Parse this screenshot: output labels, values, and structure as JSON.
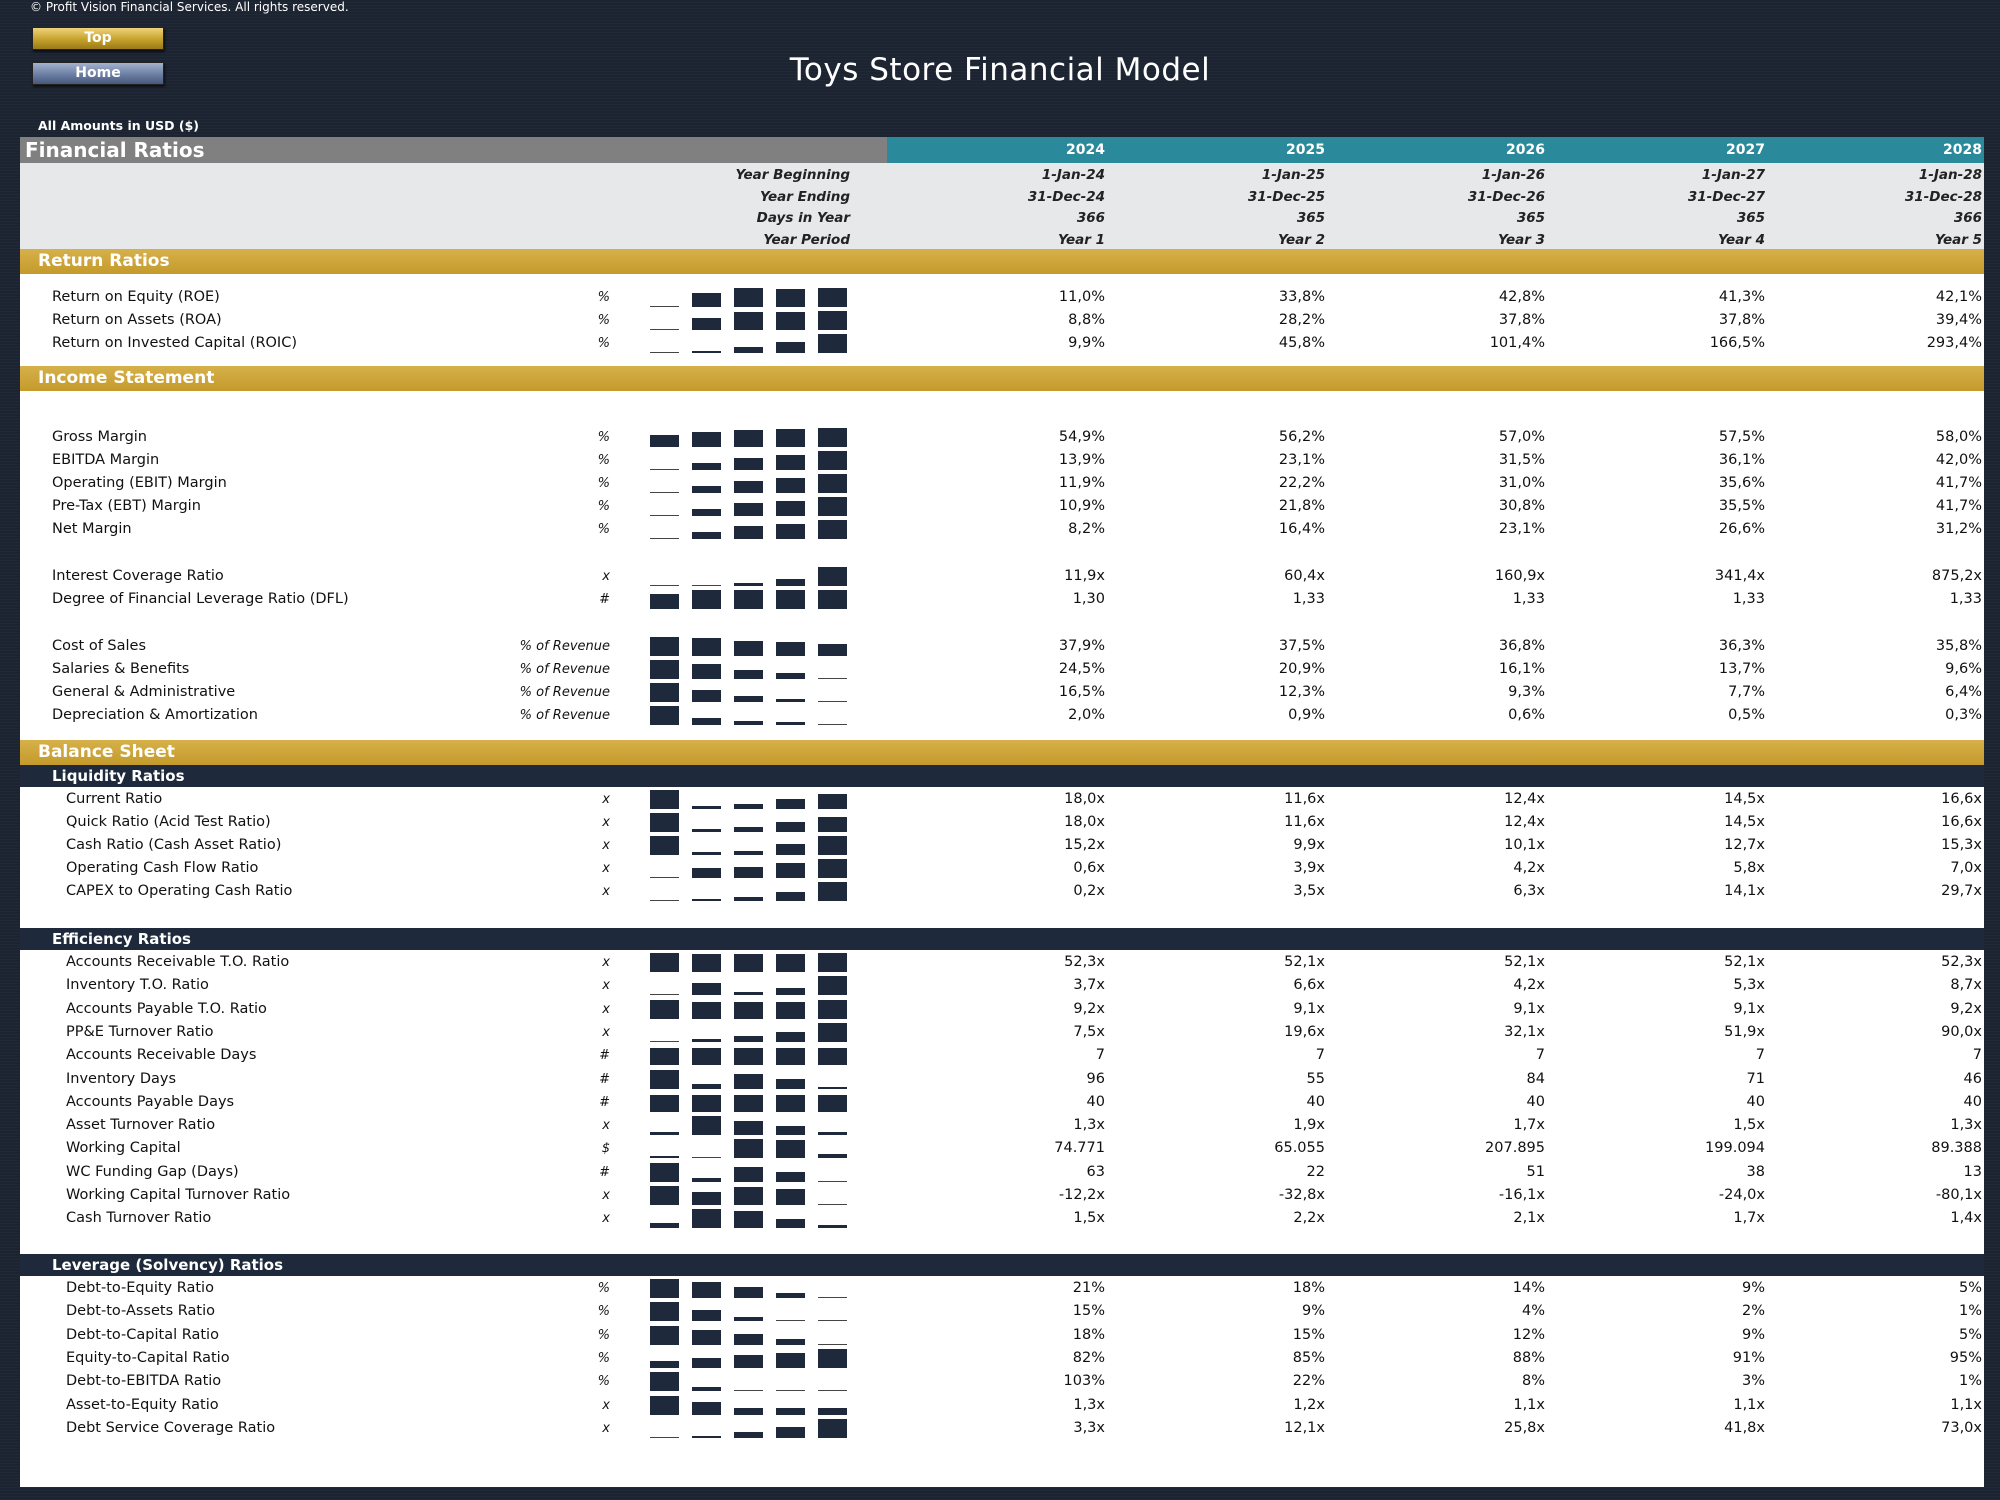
{
  "copyright": "© Profit Vision Financial Services. All rights reserved.",
  "nav": {
    "top": "Top",
    "home": "Home"
  },
  "title": "Toys Store Financial Model",
  "amounts_label": "All Amounts in  USD ($)",
  "header": {
    "label": "Financial Ratios",
    "years": [
      "2024",
      "2025",
      "2026",
      "2027",
      "2028"
    ],
    "info_rows": [
      {
        "label": "Year Beginning",
        "values": [
          "1-Jan-24",
          "1-Jan-25",
          "1-Jan-26",
          "1-Jan-27",
          "1-Jan-28"
        ]
      },
      {
        "label": "Year Ending",
        "values": [
          "31-Dec-24",
          "31-Dec-25",
          "31-Dec-26",
          "31-Dec-27",
          "31-Dec-28"
        ]
      },
      {
        "label": "Days in Year",
        "values": [
          "366",
          "365",
          "365",
          "365",
          "366"
        ]
      },
      {
        "label": "Year Period",
        "values": [
          "Year 1",
          "Year 2",
          "Year 3",
          "Year 4",
          "Year 5"
        ]
      }
    ]
  },
  "sections": {
    "return": {
      "title": "Return Ratios",
      "rows": [
        {
          "label": "Return on Equity (ROE)",
          "unit": "%",
          "values": [
            "11,0%",
            "33,8%",
            "42,8%",
            "41,3%",
            "42,1%"
          ],
          "spark": [
            11.0,
            33.8,
            42.8,
            41.3,
            42.1
          ]
        },
        {
          "label": "Return on Assets (ROA)",
          "unit": "%",
          "values": [
            "8,8%",
            "28,2%",
            "37,8%",
            "37,8%",
            "39,4%"
          ],
          "spark": [
            8.8,
            28.2,
            37.8,
            37.8,
            39.4
          ]
        },
        {
          "label": "Return on Invested Capital (ROIC)",
          "unit": "%",
          "values": [
            "9,9%",
            "45,8%",
            "101,4%",
            "166,5%",
            "293,4%"
          ],
          "spark": [
            9.9,
            45.8,
            101.4,
            166.5,
            293.4
          ]
        }
      ]
    },
    "income": {
      "title": "Income Statement",
      "rows": [
        {
          "label": "Gross Margin",
          "unit": "%",
          "values": [
            "54,9%",
            "56,2%",
            "57,0%",
            "57,5%",
            "58,0%"
          ],
          "spark": [
            54.9,
            56.2,
            57.0,
            57.5,
            58.0
          ]
        },
        {
          "label": "EBITDA Margin",
          "unit": "%",
          "values": [
            "13,9%",
            "23,1%",
            "31,5%",
            "36,1%",
            "42,0%"
          ],
          "spark": [
            13.9,
            23.1,
            31.5,
            36.1,
            42.0
          ]
        },
        {
          "label": "Operating (EBIT) Margin",
          "unit": "%",
          "values": [
            "11,9%",
            "22,2%",
            "31,0%",
            "35,6%",
            "41,7%"
          ],
          "spark": [
            11.9,
            22.2,
            31.0,
            35.6,
            41.7
          ]
        },
        {
          "label": "Pre-Tax (EBT) Margin",
          "unit": "%",
          "values": [
            "10,9%",
            "21,8%",
            "30,8%",
            "35,5%",
            "41,7%"
          ],
          "spark": [
            10.9,
            21.8,
            30.8,
            35.5,
            41.7
          ]
        },
        {
          "label": "Net Margin",
          "unit": "%",
          "values": [
            "8,2%",
            "16,4%",
            "23,1%",
            "26,6%",
            "31,2%"
          ],
          "spark": [
            8.2,
            16.4,
            23.1,
            26.6,
            31.2
          ]
        },
        {
          "label": "Interest Coverage Ratio",
          "unit": "x",
          "values": [
            "11,9x",
            "60,4x",
            "160,9x",
            "341,4x",
            "875,2x"
          ],
          "spark": [
            11.9,
            60.4,
            160.9,
            341.4,
            875.2
          ]
        },
        {
          "label": "Degree of Financial Leverage Ratio (DFL)",
          "unit": "#",
          "values": [
            "1,30",
            "1,33",
            "1,33",
            "1,33",
            "1,33"
          ],
          "spark": [
            1.3,
            1.33,
            1.33,
            1.33,
            1.33
          ]
        },
        {
          "label": "Cost of Sales",
          "unit": "% of Revenue",
          "values": [
            "37,9%",
            "37,5%",
            "36,8%",
            "36,3%",
            "35,8%"
          ],
          "spark": [
            37.9,
            37.5,
            36.8,
            36.3,
            35.8
          ]
        },
        {
          "label": "Salaries & Benefits",
          "unit": "% of Revenue",
          "values": [
            "24,5%",
            "20,9%",
            "16,1%",
            "13,7%",
            "9,6%"
          ],
          "spark": [
            24.5,
            20.9,
            16.1,
            13.7,
            9.6
          ]
        },
        {
          "label": "General & Administrative",
          "unit": "% of Revenue",
          "values": [
            "16,5%",
            "12,3%",
            "9,3%",
            "7,7%",
            "6,4%"
          ],
          "spark": [
            16.5,
            12.3,
            9.3,
            7.7,
            6.4
          ]
        },
        {
          "label": "Depreciation & Amortization",
          "unit": "% of Revenue",
          "values": [
            "2,0%",
            "0,9%",
            "0,6%",
            "0,5%",
            "0,3%"
          ],
          "spark": [
            2.0,
            0.9,
            0.6,
            0.5,
            0.3
          ]
        }
      ]
    },
    "balance": {
      "title": "Balance Sheet"
    },
    "liquidity": {
      "title": "Liquidity Ratios",
      "rows": [
        {
          "label": "Current Ratio",
          "unit": "x",
          "values": [
            "18,0x",
            "11,6x",
            "12,4x",
            "14,5x",
            "16,6x"
          ],
          "spark": [
            18.0,
            11.6,
            12.4,
            14.5,
            16.6
          ]
        },
        {
          "label": "Quick Ratio (Acid Test Ratio)",
          "unit": "x",
          "values": [
            "18,0x",
            "11,6x",
            "12,4x",
            "14,5x",
            "16,6x"
          ],
          "spark": [
            18.0,
            11.6,
            12.4,
            14.5,
            16.6
          ]
        },
        {
          "label": "Cash Ratio (Cash Asset Ratio)",
          "unit": "x",
          "values": [
            "15,2x",
            "9,9x",
            "10,1x",
            "12,7x",
            "15,3x"
          ],
          "spark": [
            15.2,
            9.9,
            10.1,
            12.7,
            15.3
          ]
        },
        {
          "label": "Operating Cash Flow Ratio",
          "unit": "x",
          "values": [
            "0,6x",
            "3,9x",
            "4,2x",
            "5,8x",
            "7,0x"
          ],
          "spark": [
            0.6,
            3.9,
            4.2,
            5.8,
            7.0
          ]
        },
        {
          "label": "CAPEX to Operating Cash Ratio",
          "unit": "x",
          "values": [
            "0,2x",
            "3,5x",
            "6,3x",
            "14,1x",
            "29,7x"
          ],
          "spark": [
            0.2,
            3.5,
            6.3,
            14.1,
            29.7
          ]
        }
      ]
    },
    "efficiency": {
      "title": "Efficiency Ratios",
      "rows": [
        {
          "label": "Accounts Receivable T.O. Ratio",
          "unit": "x",
          "values": [
            "52,3x",
            "52,1x",
            "52,1x",
            "52,1x",
            "52,3x"
          ],
          "spark": [
            52.3,
            52.1,
            52.1,
            52.1,
            52.3
          ]
        },
        {
          "label": "Inventory T.O. Ratio",
          "unit": "x",
          "values": [
            "3,7x",
            "6,6x",
            "4,2x",
            "5,3x",
            "8,7x"
          ],
          "spark": [
            3.7,
            6.6,
            4.2,
            5.3,
            8.7
          ]
        },
        {
          "label": "Accounts Payable T.O. Ratio",
          "unit": "x",
          "values": [
            "9,2x",
            "9,1x",
            "9,1x",
            "9,1x",
            "9,2x"
          ],
          "spark": [
            9.2,
            9.1,
            9.1,
            9.1,
            9.2
          ]
        },
        {
          "label": "PP&E Turnover Ratio",
          "unit": "x",
          "values": [
            "7,5x",
            "19,6x",
            "32,1x",
            "51,9x",
            "90,0x"
          ],
          "spark": [
            7.5,
            19.6,
            32.1,
            51.9,
            90.0
          ]
        },
        {
          "label": "Accounts Receivable Days",
          "unit": "#",
          "values": [
            "7",
            "7",
            "7",
            "7",
            "7"
          ],
          "spark": [
            7,
            7,
            7,
            7,
            7
          ]
        },
        {
          "label": "Inventory Days",
          "unit": "#",
          "values": [
            "96",
            "55",
            "84",
            "71",
            "46"
          ],
          "spark": [
            96,
            55,
            84,
            71,
            46
          ]
        },
        {
          "label": "Accounts Payable Days",
          "unit": "#",
          "values": [
            "40",
            "40",
            "40",
            "40",
            "40"
          ],
          "spark": [
            40,
            40,
            40,
            40,
            40
          ]
        },
        {
          "label": "Asset Turnover Ratio",
          "unit": "x",
          "values": [
            "1,3x",
            "1,9x",
            "1,7x",
            "1,5x",
            "1,3x"
          ],
          "spark": [
            1.3,
            1.9,
            1.7,
            1.5,
            1.3
          ]
        },
        {
          "label": "Working Capital",
          "unit": "$",
          "values": [
            "74.771",
            "65.055",
            "207.895",
            "199.094",
            "89.388"
          ],
          "spark": [
            74771,
            65055,
            207895,
            199094,
            89388
          ]
        },
        {
          "label": "WC Funding Gap (Days)",
          "unit": "#",
          "values": [
            "63",
            "22",
            "51",
            "38",
            "13"
          ],
          "spark": [
            63,
            22,
            51,
            38,
            13
          ]
        },
        {
          "label": "Working Capital Turnover Ratio",
          "unit": "x",
          "values": [
            "-12,2x",
            "-32,8x",
            "-16,1x",
            "-24,0x",
            "-80,1x"
          ],
          "spark": [
            -12.2,
            -32.8,
            -16.1,
            -24.0,
            -80.1
          ]
        },
        {
          "label": "Cash Turnover Ratio",
          "unit": "x",
          "values": [
            "1,5x",
            "2,2x",
            "2,1x",
            "1,7x",
            "1,4x"
          ],
          "spark": [
            1.5,
            2.2,
            2.1,
            1.7,
            1.4
          ]
        }
      ]
    },
    "leverage": {
      "title": "Leverage (Solvency) Ratios",
      "rows": [
        {
          "label": "Debt-to-Equity Ratio",
          "unit": "%",
          "values": [
            "21%",
            "18%",
            "14%",
            "9%",
            "5%"
          ],
          "spark": [
            21,
            18,
            14,
            9,
            5
          ]
        },
        {
          "label": "Debt-to-Assets Ratio",
          "unit": "%",
          "values": [
            "15%",
            "9%",
            "4%",
            "2%",
            "1%"
          ],
          "spark": [
            15,
            9,
            4,
            2,
            1
          ]
        },
        {
          "label": "Debt-to-Capital Ratio",
          "unit": "%",
          "values": [
            "18%",
            "15%",
            "12%",
            "9%",
            "5%"
          ],
          "spark": [
            18,
            15,
            12,
            9,
            5
          ]
        },
        {
          "label": "Equity-to-Capital Ratio",
          "unit": "%",
          "values": [
            "82%",
            "85%",
            "88%",
            "91%",
            "95%"
          ],
          "spark": [
            82,
            85,
            88,
            91,
            95
          ]
        },
        {
          "label": "Debt-to-EBITDA Ratio",
          "unit": "%",
          "values": [
            "103%",
            "22%",
            "8%",
            "3%",
            "1%"
          ],
          "spark": [
            103,
            22,
            8,
            3,
            1
          ]
        },
        {
          "label": "Asset-to-Equity Ratio",
          "unit": "x",
          "values": [
            "1,3x",
            "1,2x",
            "1,1x",
            "1,1x",
            "1,1x"
          ],
          "spark": [
            1.3,
            1.2,
            1.1,
            1.1,
            1.1
          ]
        },
        {
          "label": "Debt Service Coverage Ratio",
          "unit": "x",
          "values": [
            "3,3x",
            "12,1x",
            "25,8x",
            "41,8x",
            "73,0x"
          ],
          "spark": [
            3.3,
            12.1,
            25.8,
            41.8,
            73.0
          ]
        }
      ]
    }
  }
}
